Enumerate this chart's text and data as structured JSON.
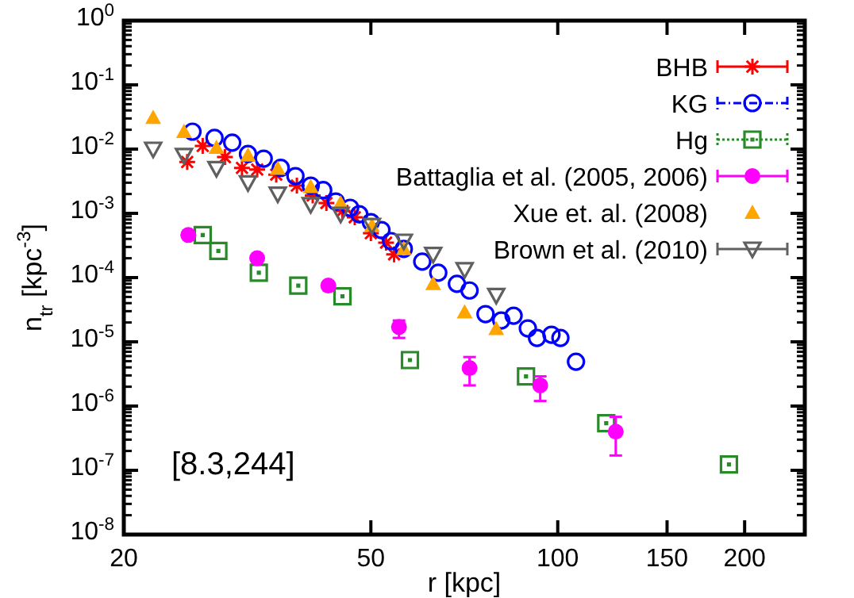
{
  "chart_data": {
    "type": "scatter",
    "xlabel": "r [kpc]",
    "ylabel": "n$_{tr}$ [kpc$^{-3}$]",
    "log": "xy",
    "legend": "top right",
    "grid": false,
    "xlim": [
      20,
      250
    ],
    "xticks": [
      20,
      50,
      100,
      150,
      200
    ],
    "ylim": [
      1e-08,
      1
    ],
    "yticks": [
      {
        "value": 1e-08,
        "label": "10$^{-8}$"
      },
      {
        "value": 1e-07,
        "label": "10$^{-7}$"
      },
      {
        "value": 1e-06,
        "label": "10$^{-6}$"
      },
      {
        "value": 1e-05,
        "label": "10$^{-5}$"
      },
      {
        "value": 0.0001,
        "label": "10$^{-4}$"
      },
      {
        "value": 0.001,
        "label": "10$^{-3}$"
      },
      {
        "value": 0.01,
        "label": "10$^{-2}$"
      },
      {
        "value": 0.1,
        "label": "10$^{-1}$"
      },
      {
        "value": 1,
        "label": "10$^{0}$"
      }
    ],
    "annotations": [
      "[8.3,244]"
    ],
    "series": [
      {
        "name": "BHB",
        "color": "#ff0000",
        "marker": "cross",
        "line_style": "solid",
        "x": [
          25.3,
          26.8,
          29.1,
          31.0,
          32.8,
          35.2,
          38.0,
          40.3,
          42.4,
          45.0,
          47.1,
          50.0,
          52.9,
          54.5
        ],
        "values": [
          0.0063,
          0.0112,
          0.0075,
          0.0051,
          0.0048,
          0.004,
          0.0027,
          0.0019,
          0.00145,
          0.00109,
          0.00087,
          0.00049,
          0.00035,
          0.00023
        ]
      },
      {
        "name": "KG",
        "color": "#0000ff",
        "marker": "circle-open",
        "line_style": "dashed",
        "x": [
          25.8,
          28.0,
          29.9,
          31.7,
          33.6,
          35.8,
          37.8,
          40.0,
          41.9,
          43.9,
          46.3,
          47.9,
          50.0,
          52.0,
          53.9,
          56.5,
          60.5,
          64.2,
          68.8,
          72.1,
          76.5,
          81.1,
          84.9,
          89.5,
          92.6,
          97.7,
          101,
          107
        ],
        "values": [
          0.0187,
          0.0149,
          0.0126,
          0.0084,
          0.0071,
          0.0051,
          0.0038,
          0.0027,
          0.0023,
          0.00153,
          0.00122,
          0.00097,
          0.00073,
          0.00055,
          0.00037,
          0.00028,
          0.000177,
          0.000119,
          8e-05,
          6.3e-05,
          2.7e-05,
          2.15e-05,
          2.55e-05,
          1.62e-05,
          1.15e-05,
          1.29e-05,
          1.15e-05,
          4.9e-06
        ]
      },
      {
        "name": "Hg",
        "color": "#2a8a2a",
        "marker": "square-open",
        "line_style": "dotted",
        "x": [
          26.8,
          28.4,
          33.0,
          38.2,
          45.0,
          57.8,
          88.9,
          119.7,
          188.7
        ],
        "values": [
          0.00046,
          0.00026,
          0.000119,
          7.5e-05,
          5.1e-05,
          5.2e-06,
          2.9e-06,
          5.4e-07,
          1.23e-07
        ]
      },
      {
        "name": "Battaglia et al. (2005, 2006)",
        "color": "#ff00ff",
        "marker": "circle",
        "line_style": "solid",
        "x": [
          25.4,
          32.8,
          42.7,
          55.5,
          72.1,
          93.7,
          124
        ],
        "values": [
          0.00046,
          0.0002,
          7.5e-05,
          1.7e-05,
          3.9e-06,
          2.1e-06,
          4e-07
        ],
        "errors": [
          null,
          null,
          null,
          [
            1.15e-05,
            2.15e-05
          ],
          [
            2.1e-06,
            5.8e-06
          ],
          [
            1.2e-06,
            2.9e-06
          ],
          [
            1.7e-07,
            6.8e-07
          ]
        ]
      },
      {
        "name": "Xue et. al. (2008)",
        "color": "#ffa500",
        "marker": "triangle",
        "x": [
          22.3,
          25.0,
          28.2,
          31.7,
          35.4,
          40.0,
          44.7,
          50.2,
          56.5,
          63.0,
          70.8,
          79.6
        ],
        "values": [
          0.031,
          0.0187,
          0.0106,
          0.008,
          0.005,
          0.0026,
          0.00145,
          0.00065,
          0.00028,
          8e-05,
          2.9e-05,
          1.6e-05
        ]
      },
      {
        "name": "Brown et al. (2010)",
        "color": "#606060",
        "marker": "triangle-down-open",
        "line_style": "solid",
        "x": [
          22.3,
          25.0,
          28.2,
          31.7,
          35.4,
          40.0,
          44.7,
          50.2,
          56.5,
          63.0,
          70.8,
          79.6
        ],
        "values": [
          0.01,
          0.008,
          0.005,
          0.003,
          0.002,
          0.00137,
          0.00097,
          0.00065,
          0.00037,
          0.00023,
          0.000133,
          5.3e-05
        ]
      }
    ]
  }
}
